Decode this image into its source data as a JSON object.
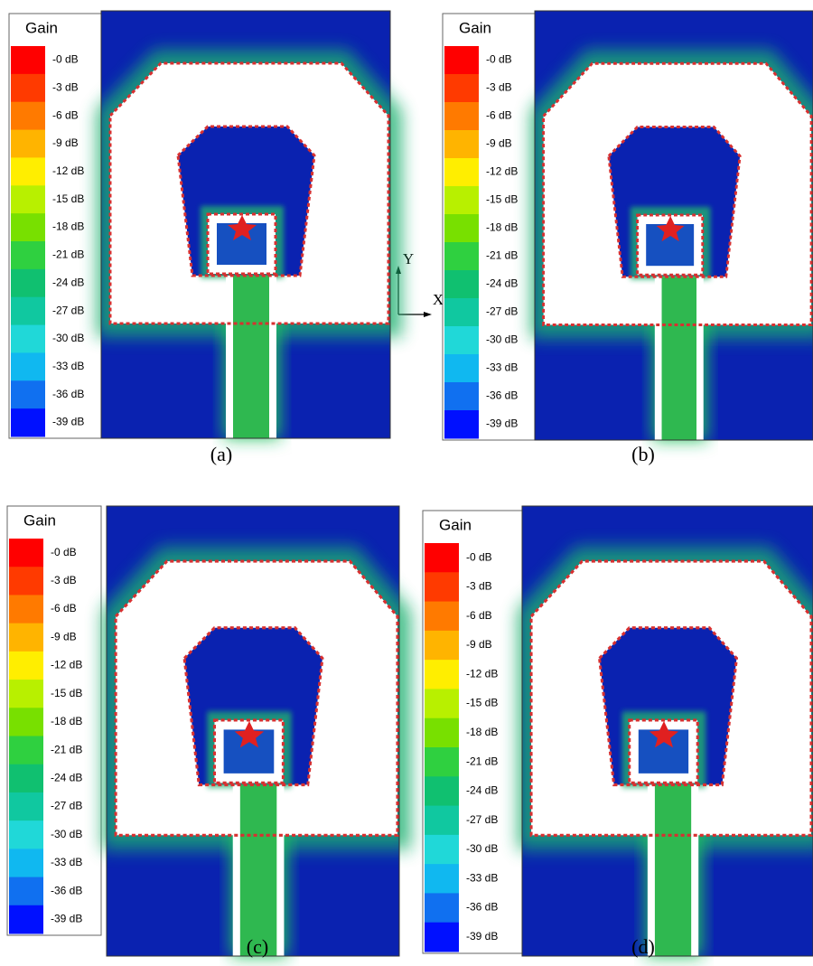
{
  "panels": [
    {
      "legend": {
        "title": "Gain",
        "labels": [
          "-0 dB",
          "-3 dB",
          "-6 dB",
          "-9 dB",
          "-12 dB",
          "-15 dB",
          "-18 dB",
          "-21 dB",
          "-24 dB",
          "-27 dB",
          "-30 dB",
          "-33 dB",
          "-36 dB",
          "-39 dB"
        ]
      },
      "caption": "(a)"
    },
    {
      "legend": {
        "title": "Gain",
        "labels": [
          "-0 dB",
          "-3 dB",
          "-6 dB",
          "-9 dB",
          "-12 dB",
          "-15 dB",
          "-18 dB",
          "-21 dB",
          "-24 dB",
          "-27 dB",
          "-30 dB",
          "-33 dB",
          "-36 dB",
          "-39 dB"
        ]
      },
      "caption": "(b)"
    },
    {
      "legend": {
        "title": "Gain",
        "labels": [
          "-0 dB",
          "-3 dB",
          "-6 dB",
          "-9 dB",
          "-12 dB",
          "-15 dB",
          "-18 dB",
          "-21 dB",
          "-24 dB",
          "-27 dB",
          "-30 dB",
          "-33 dB",
          "-36 dB",
          "-39 dB"
        ]
      },
      "caption": "(c)"
    },
    {
      "legend": {
        "title": "Gain",
        "labels": [
          "-0 dB",
          "-3 dB",
          "-6 dB",
          "-9 dB",
          "-12 dB",
          "-15 dB",
          "-18 dB",
          "-21 dB",
          "-24 dB",
          "-27 dB",
          "-30 dB",
          "-33 dB",
          "-36 dB",
          "-39 dB"
        ]
      },
      "caption": "(d)"
    }
  ],
  "axes": {
    "y": "Y",
    "x": "X"
  }
}
